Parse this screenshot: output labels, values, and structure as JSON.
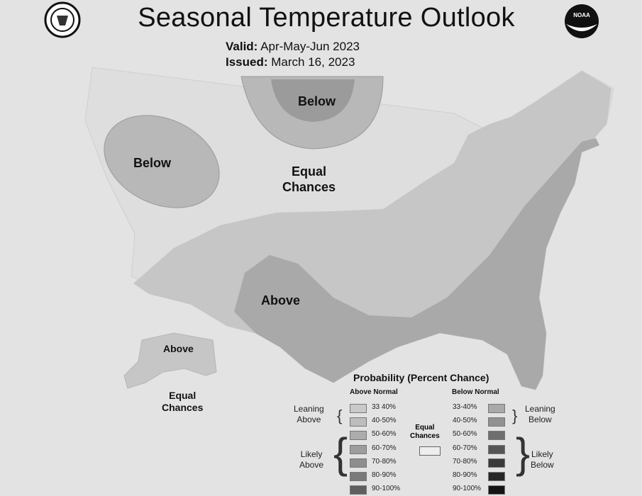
{
  "title": "Seasonal Temperature Outlook",
  "valid": {
    "label": "Valid:",
    "value": "Apr-May-Jun 2023"
  },
  "issued": {
    "label": "Issued:",
    "value": "March 16, 2023"
  },
  "logos": {
    "left": "seal-icon",
    "right": "noaa-logo",
    "noaa_text": "NOAA"
  },
  "map_labels": {
    "below_west": "Below",
    "below_north": "Below",
    "equal_main_1": "Equal",
    "equal_main_2": "Chances",
    "above_main": "Above",
    "above_alaska": "Above",
    "equal_alaska_1": "Equal",
    "equal_alaska_2": "Chances"
  },
  "colors": {
    "background": "#e3e3e3",
    "leaning": "#c4c4c4",
    "likely": "#a8a8a8",
    "strong": "#8e8e8e",
    "equal": "#dedede"
  },
  "legend": {
    "title": "Probability (Percent Chance)",
    "above_header": "Above Normal",
    "below_header": "Below Normal",
    "leaning_above_1": "Leaning",
    "leaning_above_2": "Above",
    "likely_above_1": "Likely",
    "likely_above_2": "Above",
    "leaning_below_1": "Leaning",
    "leaning_below_2": "Below",
    "likely_below_1": "Likely",
    "likely_below_2": "Below",
    "equal_1": "Equal",
    "equal_2": "Chances",
    "above_items": [
      {
        "label": "33 40%",
        "color": "#c9c9c9"
      },
      {
        "label": "40-50%",
        "color": "#bdbdbd"
      },
      {
        "label": "50-60%",
        "color": "#acacac"
      },
      {
        "label": "60-70%",
        "color": "#9d9d9d"
      },
      {
        "label": "70-80%",
        "color": "#8e8e8e"
      },
      {
        "label": "80-90%",
        "color": "#7a7a7a"
      },
      {
        "label": "90-100%",
        "color": "#5f5f5f"
      }
    ],
    "below_items": [
      {
        "label": "33-40%",
        "color": "#a9a9a9"
      },
      {
        "label": "40-50%",
        "color": "#929292"
      },
      {
        "label": "50-60%",
        "color": "#6f6f6f"
      },
      {
        "label": "60-70%",
        "color": "#555555"
      },
      {
        "label": "70-80%",
        "color": "#3a3a3a"
      },
      {
        "label": "80-90%",
        "color": "#262626"
      },
      {
        "label": "90-100%",
        "color": "#141414"
      }
    ]
  }
}
